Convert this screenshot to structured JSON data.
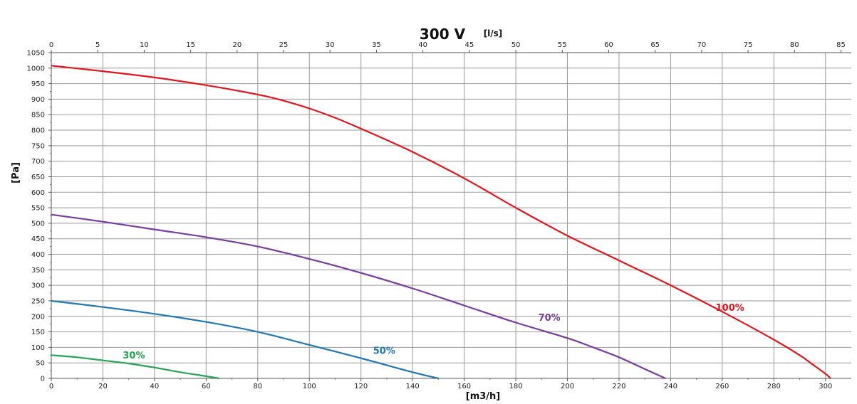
{
  "chart_data": {
    "type": "line",
    "title": "300 V",
    "top_unit": "[l/s]",
    "xlabel": "[m3/h]",
    "ylabel": "[Pa]",
    "xlim": [
      0,
      310
    ],
    "ylim": [
      0,
      1050
    ],
    "x_ticks": [
      0,
      20,
      40,
      60,
      80,
      100,
      120,
      140,
      160,
      180,
      200,
      220,
      240,
      260,
      280,
      300
    ],
    "x2_ticks": [
      0,
      5,
      10,
      15,
      20,
      25,
      30,
      35,
      40,
      45,
      50,
      55,
      60,
      65,
      70,
      75,
      80,
      85
    ],
    "x2_factor": 3.6,
    "y_ticks": [
      0,
      50,
      100,
      150,
      200,
      250,
      300,
      350,
      400,
      450,
      500,
      550,
      600,
      650,
      700,
      750,
      800,
      850,
      900,
      950,
      1000,
      1050
    ],
    "grid": true,
    "series": [
      {
        "name": "100%",
        "color": "#e3151a",
        "x": [
          0,
          20,
          40,
          60,
          80,
          90,
          100,
          110,
          120,
          140,
          160,
          180,
          200,
          220,
          240,
          260,
          280,
          290,
          295,
          300,
          302
        ],
        "y": [
          1008,
          990,
          970,
          945,
          915,
          895,
          870,
          840,
          805,
          730,
          645,
          550,
          460,
          380,
          300,
          215,
          125,
          75,
          45,
          15,
          0
        ]
      },
      {
        "name": "70%",
        "color": "#7b3aa0",
        "x": [
          0,
          20,
          40,
          60,
          80,
          100,
          120,
          140,
          160,
          180,
          200,
          210,
          220,
          230,
          238
        ],
        "y": [
          528,
          505,
          480,
          455,
          425,
          385,
          340,
          290,
          235,
          180,
          130,
          100,
          68,
          30,
          0
        ]
      },
      {
        "name": "50%",
        "color": "#1f78b4",
        "x": [
          0,
          20,
          40,
          60,
          80,
          100,
          120,
          140,
          150
        ],
        "y": [
          250,
          230,
          208,
          182,
          150,
          108,
          65,
          20,
          0
        ]
      },
      {
        "name": "30%",
        "color": "#22a650",
        "x": [
          0,
          10,
          20,
          30,
          40,
          50,
          60,
          65
        ],
        "y": [
          75,
          68,
          58,
          48,
          35,
          20,
          7,
          0
        ]
      }
    ]
  }
}
